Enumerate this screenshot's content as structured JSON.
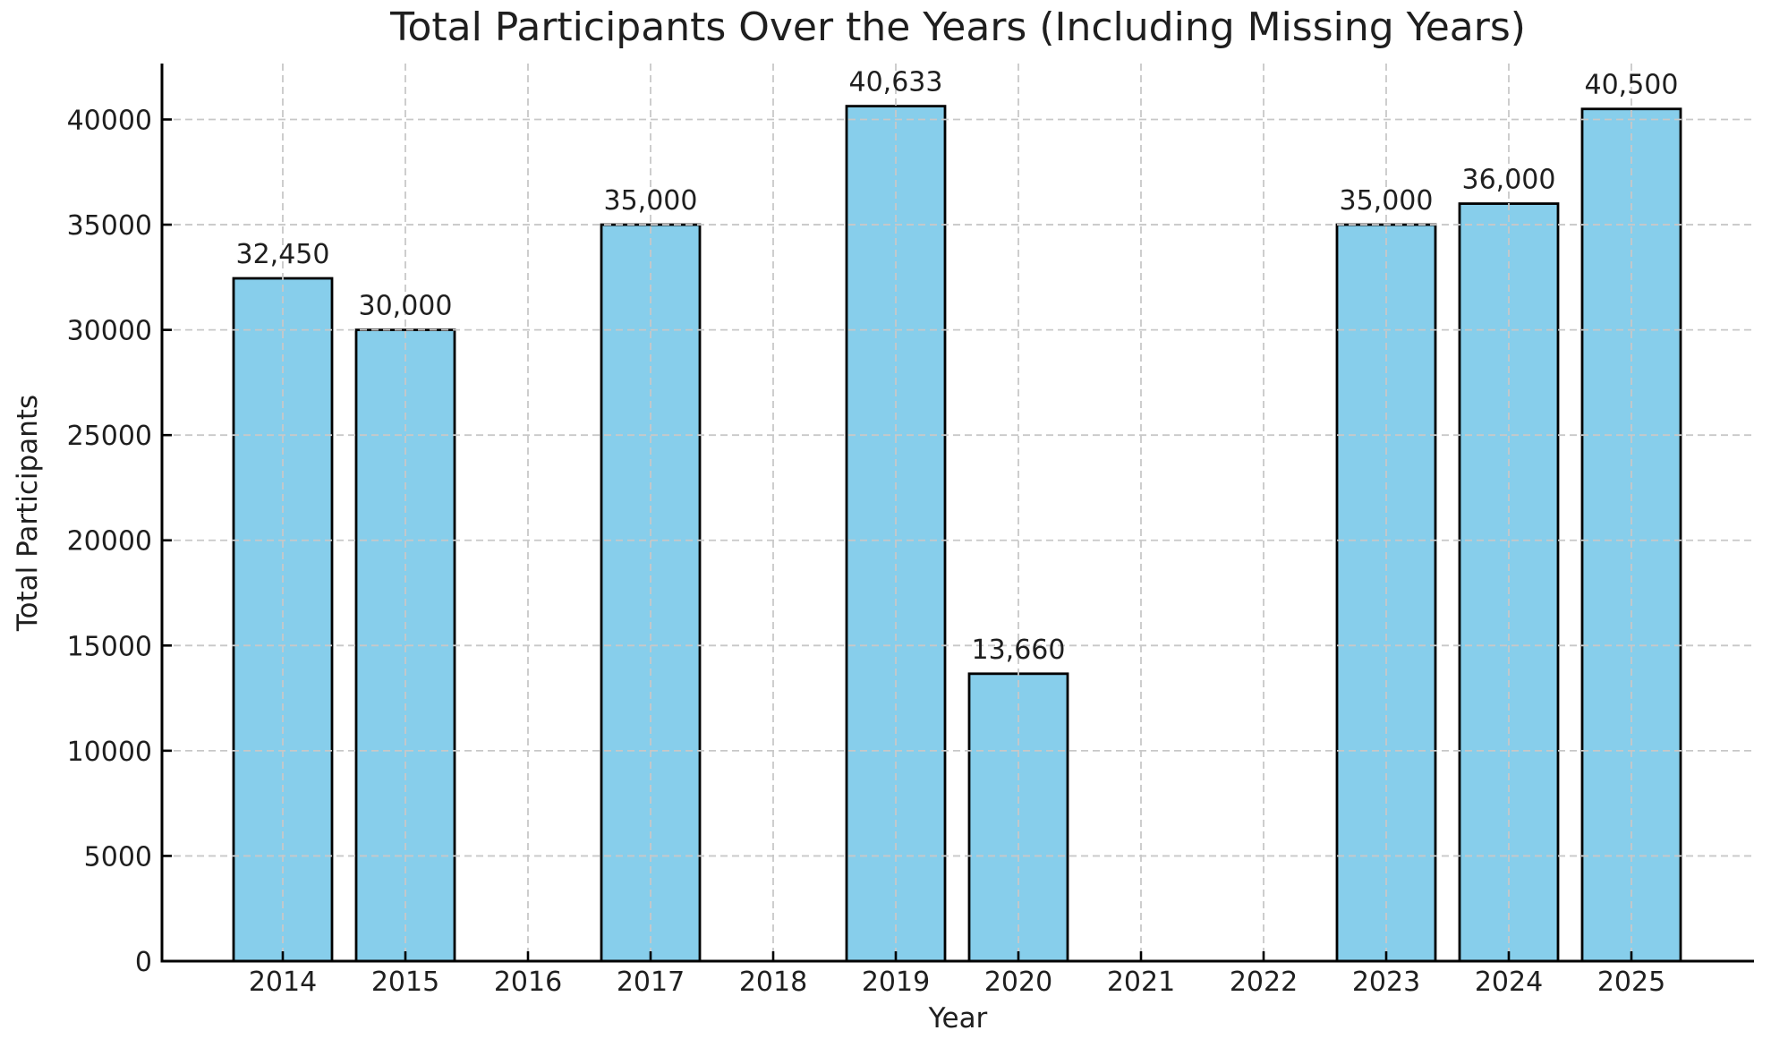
{
  "chart_data": {
    "type": "bar",
    "title": "Total Participants Over the Years (Including Missing Years)",
    "xlabel": "Year",
    "ylabel": "Total Participants",
    "categories": [
      "2014",
      "2015",
      "2016",
      "2017",
      "2018",
      "2019",
      "2020",
      "2021",
      "2022",
      "2023",
      "2024",
      "2025"
    ],
    "values": [
      32450,
      30000,
      null,
      35000,
      null,
      40633,
      13660,
      null,
      null,
      35000,
      36000,
      40500
    ],
    "bar_labels": [
      "32,450",
      "30,000",
      null,
      "35,000",
      null,
      "40,633",
      "13,660",
      null,
      null,
      "35,000",
      "36,000",
      "40,500"
    ],
    "missing_years": [
      "2016",
      "2018",
      "2021",
      "2022"
    ],
    "yticks": [
      0,
      5000,
      10000,
      15000,
      20000,
      25000,
      30000,
      35000,
      40000
    ],
    "ylim": [
      0,
      42658
    ],
    "grid": true,
    "legend": false,
    "colors": {
      "bar_fill": "#87CEEB",
      "bar_edge": "#000000",
      "grid": "#c8c8c8",
      "axis": "#000000",
      "text": "#1f1f1f",
      "background": "#ffffff"
    }
  }
}
